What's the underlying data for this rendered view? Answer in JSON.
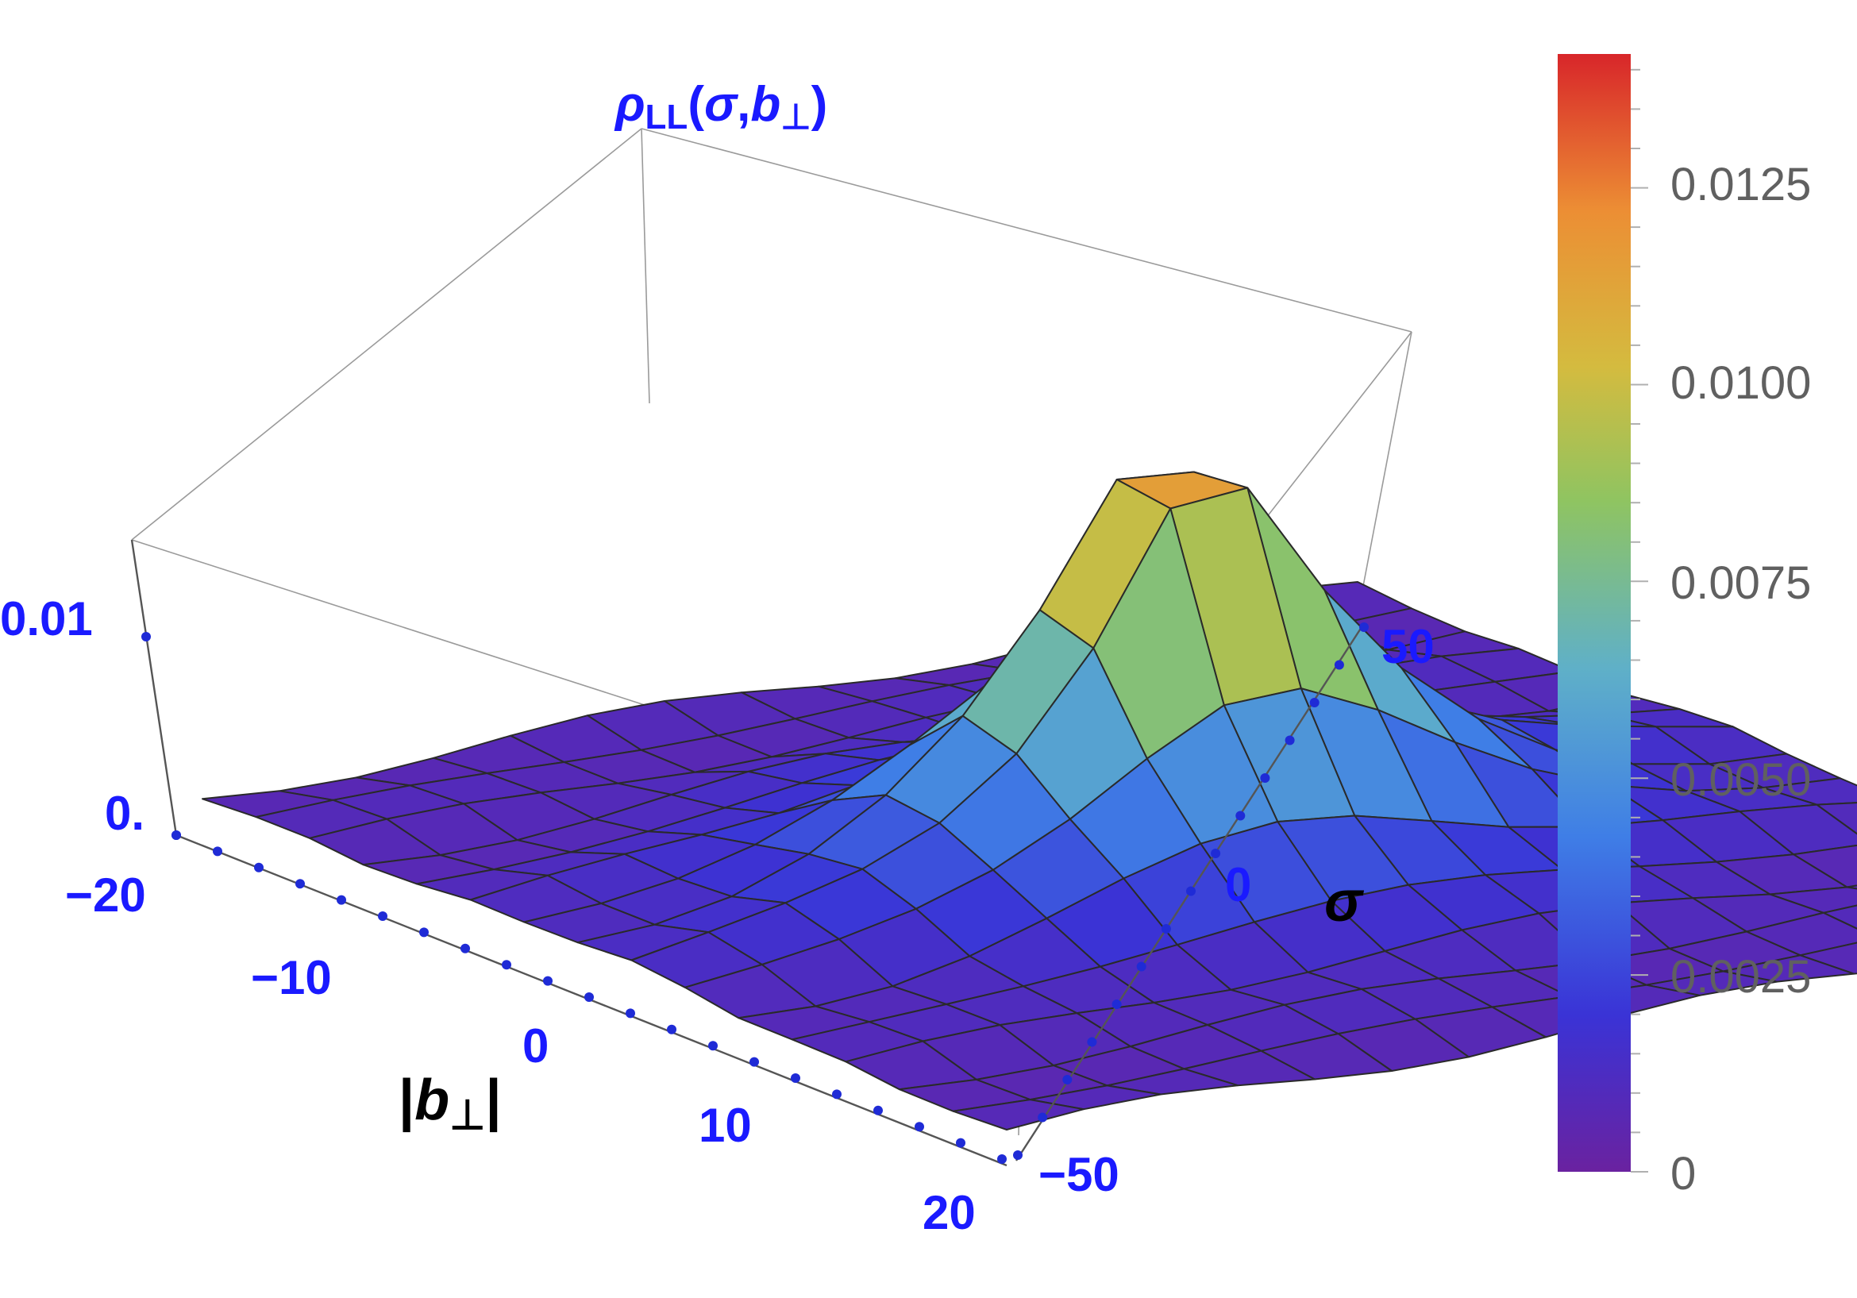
{
  "chart_data": {
    "type": "surface3d",
    "title": "ρLL(σ,b⊥)",
    "title_parts": {
      "rho": "ρ",
      "sub": "LL",
      "args_open": "(",
      "sigma": "σ",
      "comma": ",",
      "b": "b",
      "perp": "⊥",
      "args_close": ")"
    },
    "xlabel": "|b⊥|",
    "xlabel_parts": {
      "bar_l": "|",
      "b": "b",
      "perp": "⊥",
      "bar_r": "|"
    },
    "ylabel": "σ",
    "x_ticks": [
      "−20",
      "−10",
      "0",
      "10",
      "20"
    ],
    "y_ticks": [
      "−50",
      "0",
      "50"
    ],
    "z_ticks": [
      "0.",
      "0.01"
    ],
    "xlim": [
      -20,
      20
    ],
    "ylim": [
      -50,
      50
    ],
    "zlim": [
      0,
      0.014
    ],
    "grid": "15x15 mesh",
    "peak": {
      "b_perp": 0,
      "sigma": 0,
      "value": 0.0137
    },
    "colorbar": {
      "ticks": [
        "0",
        "0.0025",
        "0.0050",
        "0.0075",
        "0.0100",
        "0.0125"
      ],
      "range": [
        0,
        0.0142
      ],
      "colors": [
        "#6a22a0",
        "#3a33d6",
        "#3f7ee6",
        "#5fb0c8",
        "#8fc461",
        "#d4bb3f",
        "#ec8e34",
        "#d8262a"
      ]
    }
  }
}
